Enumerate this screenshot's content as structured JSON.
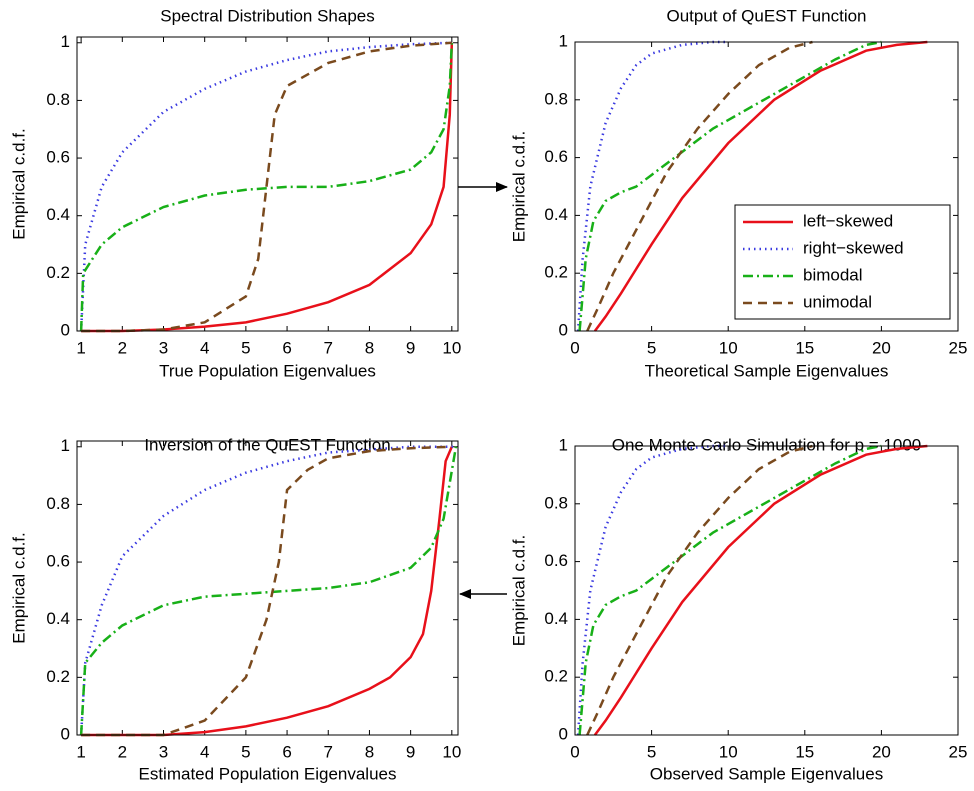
{
  "chart_data": [
    {
      "type": "line",
      "title": "Spectral Distribution Shapes",
      "xlabel": "True Population Eigenvalues",
      "ylabel": "Empirical c.d.f.",
      "xlim": [
        0.9,
        10.15
      ],
      "ylim": [
        0,
        1.02
      ],
      "xticks": [
        1,
        2,
        3,
        4,
        5,
        6,
        7,
        8,
        9,
        10
      ],
      "yticks": [
        0,
        0.2,
        0.4,
        0.6,
        0.8,
        1
      ],
      "series": [
        {
          "color": "#e8101a",
          "dash": "solid",
          "x": [
            1,
            2,
            3,
            4,
            5,
            6,
            7,
            8,
            9,
            9.5,
            9.8,
            9.95,
            10
          ],
          "values": [
            0,
            0,
            0.005,
            0.015,
            0.03,
            0.06,
            0.1,
            0.16,
            0.27,
            0.37,
            0.5,
            0.75,
            1
          ]
        },
        {
          "color": "#3a3ae0",
          "dash": "dotted",
          "x": [
            1,
            1.1,
            1.5,
            2,
            3,
            4,
            5,
            6,
            7,
            8,
            9,
            10
          ],
          "values": [
            0,
            0.3,
            0.5,
            0.62,
            0.76,
            0.84,
            0.9,
            0.94,
            0.97,
            0.985,
            0.995,
            1
          ]
        },
        {
          "color": "#18b018",
          "dash": "dashdot",
          "x": [
            1,
            1.05,
            1.5,
            2,
            3,
            4,
            5,
            6,
            7,
            8,
            9,
            9.5,
            9.8,
            9.95,
            10
          ],
          "values": [
            0,
            0.2,
            0.3,
            0.36,
            0.43,
            0.47,
            0.49,
            0.5,
            0.5,
            0.52,
            0.56,
            0.62,
            0.7,
            0.85,
            1
          ]
        },
        {
          "color": "#7a4a1e",
          "dash": "dashed",
          "x": [
            1,
            2,
            3,
            4,
            5,
            5.3,
            5.5,
            5.7,
            6,
            7,
            8,
            9,
            10
          ],
          "values": [
            0,
            0,
            0.005,
            0.03,
            0.12,
            0.25,
            0.5,
            0.75,
            0.85,
            0.93,
            0.97,
            0.99,
            1
          ]
        }
      ]
    },
    {
      "type": "line",
      "title": "Output of QuEST Function",
      "xlabel": "Theoretical Sample Eigenvalues",
      "ylabel": "Empirical c.d.f.",
      "xlim": [
        0,
        25
      ],
      "ylim": [
        0,
        1
      ],
      "xticks": [
        0,
        5,
        10,
        15,
        20,
        25
      ],
      "yticks": [
        0,
        0.2,
        0.4,
        0.6,
        0.8,
        1
      ],
      "legend": "lower right",
      "series": [
        {
          "name": "left−skewed",
          "color": "#e8101a",
          "dash": "solid",
          "x": [
            1.3,
            2,
            3,
            5,
            7,
            10,
            13,
            16,
            19,
            21,
            23
          ],
          "values": [
            0,
            0.05,
            0.13,
            0.3,
            0.46,
            0.65,
            0.8,
            0.9,
            0.97,
            0.99,
            1
          ]
        },
        {
          "name": "right−skewed",
          "color": "#3a3ae0",
          "dash": "dotted",
          "x": [
            0.2,
            0.5,
            1,
            2,
            3,
            4,
            5,
            7,
            9,
            10
          ],
          "values": [
            0,
            0.25,
            0.5,
            0.72,
            0.84,
            0.92,
            0.96,
            0.99,
            1,
            1
          ]
        },
        {
          "name": "bimodal",
          "color": "#18b018",
          "dash": "dashdot",
          "x": [
            0.3,
            0.7,
            1.2,
            2,
            3,
            4,
            5,
            7,
            9,
            11,
            13,
            15,
            17,
            19,
            20
          ],
          "values": [
            0,
            0.25,
            0.38,
            0.45,
            0.48,
            0.5,
            0.54,
            0.62,
            0.7,
            0.76,
            0.82,
            0.88,
            0.94,
            0.99,
            1
          ]
        },
        {
          "name": "unimodal",
          "color": "#7a4a1e",
          "dash": "dashed",
          "x": [
            0.8,
            1.5,
            2.5,
            4,
            5,
            6,
            8,
            10,
            12,
            14,
            15.5
          ],
          "values": [
            0,
            0.08,
            0.2,
            0.35,
            0.45,
            0.55,
            0.7,
            0.82,
            0.92,
            0.98,
            1
          ]
        }
      ]
    },
    {
      "type": "line",
      "title": "Inversion of the QuEST Function",
      "xlabel": "Estimated Population Eigenvalues",
      "ylabel": "Empirical c.d.f.",
      "xlim": [
        0.9,
        10.15
      ],
      "ylim": [
        0,
        1.02
      ],
      "xticks": [
        1,
        2,
        3,
        4,
        5,
        6,
        7,
        8,
        9,
        10
      ],
      "yticks": [
        0,
        0.2,
        0.4,
        0.6,
        0.8,
        1
      ],
      "series": [
        {
          "color": "#e8101a",
          "dash": "solid",
          "x": [
            1,
            3,
            4,
            5,
            6,
            7,
            8,
            8.5,
            9,
            9.3,
            9.5,
            9.7,
            9.85,
            10
          ],
          "values": [
            0,
            0,
            0.01,
            0.03,
            0.06,
            0.1,
            0.16,
            0.2,
            0.27,
            0.35,
            0.5,
            0.75,
            0.95,
            1
          ]
        },
        {
          "color": "#3a3ae0",
          "dash": "dotted",
          "x": [
            1,
            1.1,
            1.5,
            2,
            3,
            4,
            5,
            6,
            7,
            8,
            9,
            10.1
          ],
          "values": [
            0,
            0.25,
            0.45,
            0.62,
            0.76,
            0.85,
            0.91,
            0.95,
            0.98,
            0.99,
            1,
            1
          ]
        },
        {
          "color": "#18b018",
          "dash": "dashdot",
          "x": [
            1,
            1.1,
            1.5,
            2,
            3,
            4,
            5,
            6,
            7,
            8,
            9,
            9.5,
            9.8,
            10.1
          ],
          "values": [
            0,
            0.25,
            0.32,
            0.38,
            0.45,
            0.48,
            0.49,
            0.5,
            0.51,
            0.53,
            0.58,
            0.65,
            0.75,
            1
          ]
        },
        {
          "color": "#7a4a1e",
          "dash": "dashed",
          "x": [
            1,
            3,
            4,
            5,
            5.5,
            5.8,
            6,
            6.5,
            7,
            8,
            9,
            10
          ],
          "values": [
            0,
            0,
            0.05,
            0.2,
            0.4,
            0.6,
            0.85,
            0.92,
            0.96,
            0.985,
            0.995,
            1
          ]
        }
      ]
    },
    {
      "type": "line",
      "title": "One Monte Carlo Simulation for  p  = 1000",
      "xlabel": "Observed Sample Eigenvalues",
      "ylabel": "Empirical c.d.f.",
      "xlim": [
        0,
        25
      ],
      "ylim": [
        0,
        1
      ],
      "xticks": [
        0,
        5,
        10,
        15,
        20,
        25
      ],
      "yticks": [
        0,
        0.2,
        0.4,
        0.6,
        0.8,
        1
      ],
      "series": [
        {
          "color": "#e8101a",
          "dash": "solid",
          "x": [
            1.3,
            2,
            3,
            5,
            7,
            10,
            13,
            16,
            19,
            21,
            23
          ],
          "values": [
            0,
            0.05,
            0.13,
            0.3,
            0.46,
            0.65,
            0.8,
            0.9,
            0.97,
            0.99,
            1
          ]
        },
        {
          "color": "#3a3ae0",
          "dash": "dotted",
          "x": [
            0.2,
            0.5,
            1,
            2,
            3,
            4,
            5,
            7,
            9,
            10
          ],
          "values": [
            0,
            0.25,
            0.5,
            0.72,
            0.84,
            0.92,
            0.96,
            0.99,
            1,
            1
          ]
        },
        {
          "color": "#18b018",
          "dash": "dashdot",
          "x": [
            0.3,
            0.7,
            1.2,
            2,
            3,
            4,
            5,
            7,
            9,
            11,
            13,
            15,
            17,
            19,
            20
          ],
          "values": [
            0,
            0.25,
            0.38,
            0.45,
            0.48,
            0.5,
            0.54,
            0.62,
            0.7,
            0.76,
            0.82,
            0.88,
            0.94,
            0.99,
            1
          ]
        },
        {
          "color": "#7a4a1e",
          "dash": "dashed",
          "x": [
            0.8,
            1.5,
            2.5,
            4,
            5,
            6,
            8,
            10,
            12,
            14,
            15.5
          ],
          "values": [
            0,
            0.08,
            0.2,
            0.35,
            0.45,
            0.55,
            0.7,
            0.82,
            0.92,
            0.98,
            1
          ]
        }
      ]
    }
  ]
}
